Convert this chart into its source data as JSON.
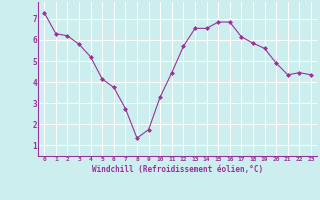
{
  "x": [
    0,
    1,
    2,
    3,
    4,
    5,
    6,
    7,
    8,
    9,
    10,
    11,
    12,
    13,
    14,
    15,
    16,
    17,
    18,
    19,
    20,
    21,
    22,
    23
  ],
  "y": [
    7.3,
    6.3,
    6.2,
    5.8,
    5.2,
    4.15,
    3.75,
    2.75,
    1.35,
    1.75,
    3.3,
    4.45,
    5.7,
    6.55,
    6.55,
    6.85,
    6.85,
    6.15,
    5.85,
    5.6,
    4.9,
    4.35,
    4.45,
    4.35
  ],
  "line_color": "#993399",
  "marker": "D",
  "marker_size": 2,
  "bg_color": "#cceeee",
  "grid_color": "#aadddd",
  "xlabel": "Windchill (Refroidissement éolien,°C)",
  "xlabel_color": "#993399",
  "tick_color": "#993399",
  "ylim": [
    0.5,
    7.8
  ],
  "xlim": [
    -0.5,
    23.5
  ],
  "yticks": [
    1,
    2,
    3,
    4,
    5,
    6,
    7
  ],
  "xticks": [
    0,
    1,
    2,
    3,
    4,
    5,
    6,
    7,
    8,
    9,
    10,
    11,
    12,
    13,
    14,
    15,
    16,
    17,
    18,
    19,
    20,
    21,
    22,
    23
  ]
}
